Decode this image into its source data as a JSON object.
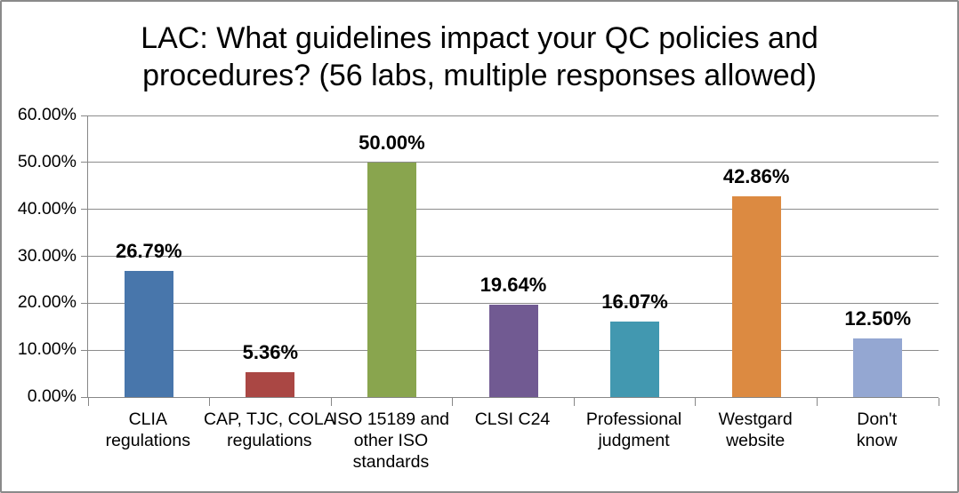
{
  "window": {
    "background_color": "#FFFFFF",
    "border_color": "#8A8A8A"
  },
  "title": {
    "line1": "LAC: What guidelines impact your QC policies and",
    "line2": "procedures? (56 labs, multiple responses allowed)"
  },
  "chart_data": {
    "type": "bar",
    "title": "LAC: What guidelines impact your QC policies and procedures? (56 labs, multiple responses allowed)",
    "subtitle": "",
    "xlabel": "",
    "ylabel": "",
    "ylim": [
      0,
      60
    ],
    "grid": true,
    "legend": false,
    "y_ticks": [
      {
        "value": 0,
        "label": "0.00%"
      },
      {
        "value": 10,
        "label": "10.00%"
      },
      {
        "value": 20,
        "label": "20.00%"
      },
      {
        "value": 30,
        "label": "30.00%"
      },
      {
        "value": 40,
        "label": "40.00%"
      },
      {
        "value": 50,
        "label": "50.00%"
      },
      {
        "value": 60,
        "label": "60.00%"
      }
    ],
    "categories": [
      "CLIA regulations",
      "CAP, TJC, COLA regulations",
      "ISO 15189 and other ISO standards",
      "CLSI C24",
      "Professional judgment",
      "Westgard website",
      "Don't know"
    ],
    "category_label_lines": [
      [
        "CLIA",
        "regulations"
      ],
      [
        "CAP, TJC, COLA",
        "regulations"
      ],
      [
        "ISO 15189 and",
        "other ISO",
        "standards"
      ],
      [
        "CLSI C24"
      ],
      [
        "Professional",
        "judgment"
      ],
      [
        "Westgard",
        "website"
      ],
      [
        "Don't know"
      ]
    ],
    "values": [
      26.79,
      5.36,
      50.0,
      19.64,
      16.07,
      42.86,
      12.5
    ],
    "value_labels": [
      "26.79%",
      "5.36%",
      "50.00%",
      "19.64%",
      "16.07%",
      "42.86%",
      "12.50%"
    ],
    "bar_colors": [
      "#4876AB",
      "#AA4744",
      "#89A54E",
      "#715A92",
      "#4298B0",
      "#DC8A41",
      "#94A7D2"
    ],
    "gridline_color": "#8C8C8C",
    "axis_color": "#878787",
    "label_color": "#000000"
  }
}
